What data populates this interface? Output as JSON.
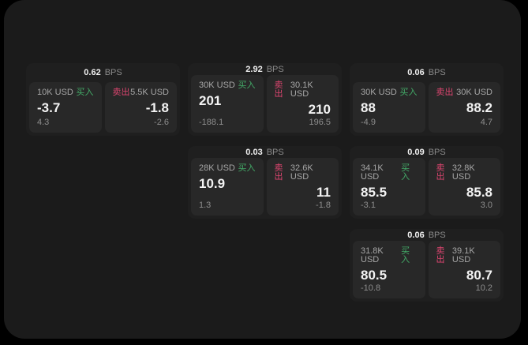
{
  "labels": {
    "bps_unit": "BPS",
    "buy": "买入",
    "sell": "卖出"
  },
  "colors": {
    "background": "#000000",
    "surface": "#1b1b1b",
    "card": "#1f1f1f",
    "panel": "#282828",
    "buy_accent": "#43ab68",
    "sell_accent": "#dd4570"
  },
  "cards": [
    {
      "bps": "0.62",
      "buy": {
        "amount": "10K USD",
        "value": "-3.7",
        "sub": "4.3"
      },
      "sell": {
        "amount": "5.5K USD",
        "value": "-1.8",
        "sub": "-2.6"
      }
    },
    {
      "bps": "2.92",
      "buy": {
        "amount": "30K USD",
        "value": "201",
        "sub": "-188.1"
      },
      "sell": {
        "amount": "30.1K USD",
        "value": "210",
        "sub": "196.5"
      }
    },
    {
      "bps": "0.06",
      "buy": {
        "amount": "30K USD",
        "value": "88",
        "sub": "-4.9"
      },
      "sell": {
        "amount": "30K USD",
        "value": "88.2",
        "sub": "4.7"
      }
    },
    {
      "bps": "0.03",
      "buy": {
        "amount": "28K USD",
        "value": "10.9",
        "sub": "1.3"
      },
      "sell": {
        "amount": "32.6K USD",
        "value": "11",
        "sub": "-1.8"
      }
    },
    {
      "bps": "0.09",
      "buy": {
        "amount": "34.1K USD",
        "value": "85.5",
        "sub": "-3.1"
      },
      "sell": {
        "amount": "32.8K USD",
        "value": "85.8",
        "sub": "3.0"
      }
    },
    {
      "bps": "0.06",
      "buy": {
        "amount": "31.8K USD",
        "value": "80.5",
        "sub": "-10.8"
      },
      "sell": {
        "amount": "39.1K USD",
        "value": "80.7",
        "sub": "10.2"
      }
    }
  ]
}
